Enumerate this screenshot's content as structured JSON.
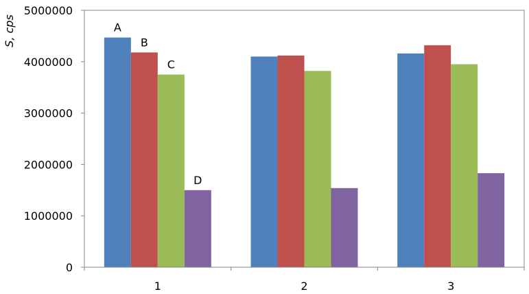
{
  "chart_data": {
    "type": "bar",
    "title": "",
    "xlabel": "",
    "ylabel": "S, cps",
    "ylim": [
      0,
      5000000
    ],
    "yticks": [
      0,
      1000000,
      2000000,
      3000000,
      4000000,
      5000000
    ],
    "ytick_labels": [
      "0",
      "1000000",
      "2000000",
      "3000000",
      "4000000",
      "5000000"
    ],
    "categories": [
      "1",
      "2",
      "3"
    ],
    "grid": false,
    "legend": "none",
    "series": [
      {
        "name": "A",
        "color": "#4f81bd",
        "values": [
          4470000,
          4100000,
          4160000
        ]
      },
      {
        "name": "B",
        "color": "#c0504d",
        "values": [
          4180000,
          4120000,
          4320000
        ]
      },
      {
        "name": "C",
        "color": "#9bbb59",
        "values": [
          3750000,
          3820000,
          3950000
        ]
      },
      {
        "name": "D",
        "color": "#8064a2",
        "values": [
          1500000,
          1540000,
          1830000
        ]
      }
    ],
    "annotations": [
      {
        "text": "A",
        "series": 0,
        "category": 0
      },
      {
        "text": "B",
        "series": 1,
        "category": 0
      },
      {
        "text": "C",
        "series": 2,
        "category": 0
      },
      {
        "text": "D",
        "series": 3,
        "category": 0
      }
    ]
  }
}
